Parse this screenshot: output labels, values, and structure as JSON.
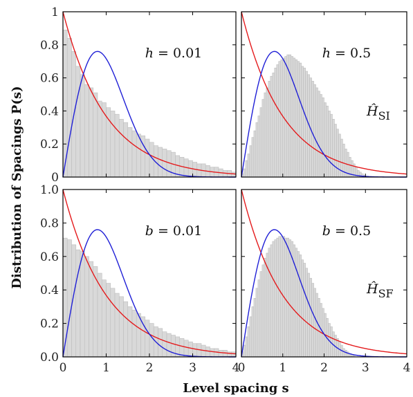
{
  "figure": {
    "ylabel": "Distribution of Spacings P(s)",
    "xlabel": "Level spacing s"
  },
  "colors": {
    "poisson": "#e41a1c",
    "wigner": "#1f1fd6",
    "hist": "#d9d9d9"
  },
  "chart_data": [
    {
      "type": "bar",
      "panel": "top-left",
      "annotation": "h = 0.01",
      "xlim": [
        0,
        4
      ],
      "ylim": [
        0,
        1
      ],
      "xticks": [],
      "yticks": [
        "0",
        "0.2",
        "0.4",
        "0.6",
        "0.8",
        "1"
      ],
      "bin_width": 0.1,
      "bins_start": 0.0,
      "values": [
        0.89,
        0.84,
        0.76,
        0.67,
        0.62,
        0.56,
        0.54,
        0.51,
        0.46,
        0.45,
        0.42,
        0.4,
        0.38,
        0.35,
        0.33,
        0.3,
        0.28,
        0.26,
        0.25,
        0.23,
        0.21,
        0.19,
        0.18,
        0.17,
        0.16,
        0.15,
        0.13,
        0.12,
        0.11,
        0.1,
        0.09,
        0.08,
        0.08,
        0.07,
        0.06,
        0.06,
        0.05,
        0.04,
        0.04,
        0.03
      ]
    },
    {
      "type": "bar",
      "panel": "top-right",
      "annotation": "h = 0.5",
      "label": "Ĥ_SI",
      "xlim": [
        0,
        4
      ],
      "ylim": [
        0,
        1
      ],
      "xticks": [],
      "yticks": [],
      "bin_width": 0.05,
      "bins_start": 0.0,
      "values": [
        0.02,
        0.05,
        0.1,
        0.14,
        0.19,
        0.24,
        0.28,
        0.33,
        0.37,
        0.42,
        0.47,
        0.51,
        0.54,
        0.58,
        0.61,
        0.63,
        0.66,
        0.68,
        0.7,
        0.71,
        0.72,
        0.73,
        0.74,
        0.74,
        0.73,
        0.72,
        0.71,
        0.7,
        0.69,
        0.67,
        0.66,
        0.64,
        0.62,
        0.6,
        0.58,
        0.56,
        0.54,
        0.52,
        0.5,
        0.48,
        0.45,
        0.43,
        0.4,
        0.38,
        0.35,
        0.32,
        0.29,
        0.26,
        0.23,
        0.2,
        0.17,
        0.15,
        0.12,
        0.1,
        0.08,
        0.06,
        0.04,
        0.03,
        0.02,
        0.01
      ]
    },
    {
      "type": "bar",
      "panel": "bottom-left",
      "annotation": "b = 0.01",
      "xlim": [
        0,
        4
      ],
      "ylim": [
        0,
        1
      ],
      "xticks": [
        "0",
        "1",
        "2",
        "3",
        "4"
      ],
      "yticks": [
        "0.0",
        "0.2",
        "0.4",
        "0.6",
        "0.8",
        "1.0"
      ],
      "bin_width": 0.1,
      "bins_start": 0.0,
      "values": [
        0.71,
        0.7,
        0.67,
        0.64,
        0.63,
        0.6,
        0.57,
        0.54,
        0.5,
        0.46,
        0.44,
        0.41,
        0.38,
        0.36,
        0.33,
        0.3,
        0.28,
        0.26,
        0.24,
        0.22,
        0.2,
        0.18,
        0.17,
        0.15,
        0.14,
        0.13,
        0.12,
        0.11,
        0.1,
        0.09,
        0.08,
        0.08,
        0.07,
        0.06,
        0.05,
        0.05,
        0.04,
        0.04,
        0.03,
        0.03
      ]
    },
    {
      "type": "bar",
      "panel": "bottom-right",
      "annotation": "b = 0.5",
      "label": "Ĥ_SF",
      "xlim": [
        0,
        4
      ],
      "ylim": [
        0,
        1
      ],
      "xticks": [
        "0",
        "1",
        "2",
        "3",
        "4"
      ],
      "yticks": [],
      "bin_width": 0.05,
      "bins_start": 0.0,
      "values": [
        0.03,
        0.07,
        0.12,
        0.18,
        0.24,
        0.3,
        0.35,
        0.41,
        0.46,
        0.51,
        0.55,
        0.59,
        0.62,
        0.65,
        0.67,
        0.69,
        0.7,
        0.71,
        0.72,
        0.72,
        0.72,
        0.71,
        0.71,
        0.7,
        0.69,
        0.67,
        0.65,
        0.63,
        0.61,
        0.58,
        0.56,
        0.53,
        0.5,
        0.47,
        0.44,
        0.41,
        0.38,
        0.35,
        0.32,
        0.29,
        0.26,
        0.23,
        0.2,
        0.18,
        0.15,
        0.13,
        0.11,
        0.09,
        0.07,
        0.05,
        0.04,
        0.03,
        0.02,
        0.01,
        0.01
      ]
    }
  ]
}
